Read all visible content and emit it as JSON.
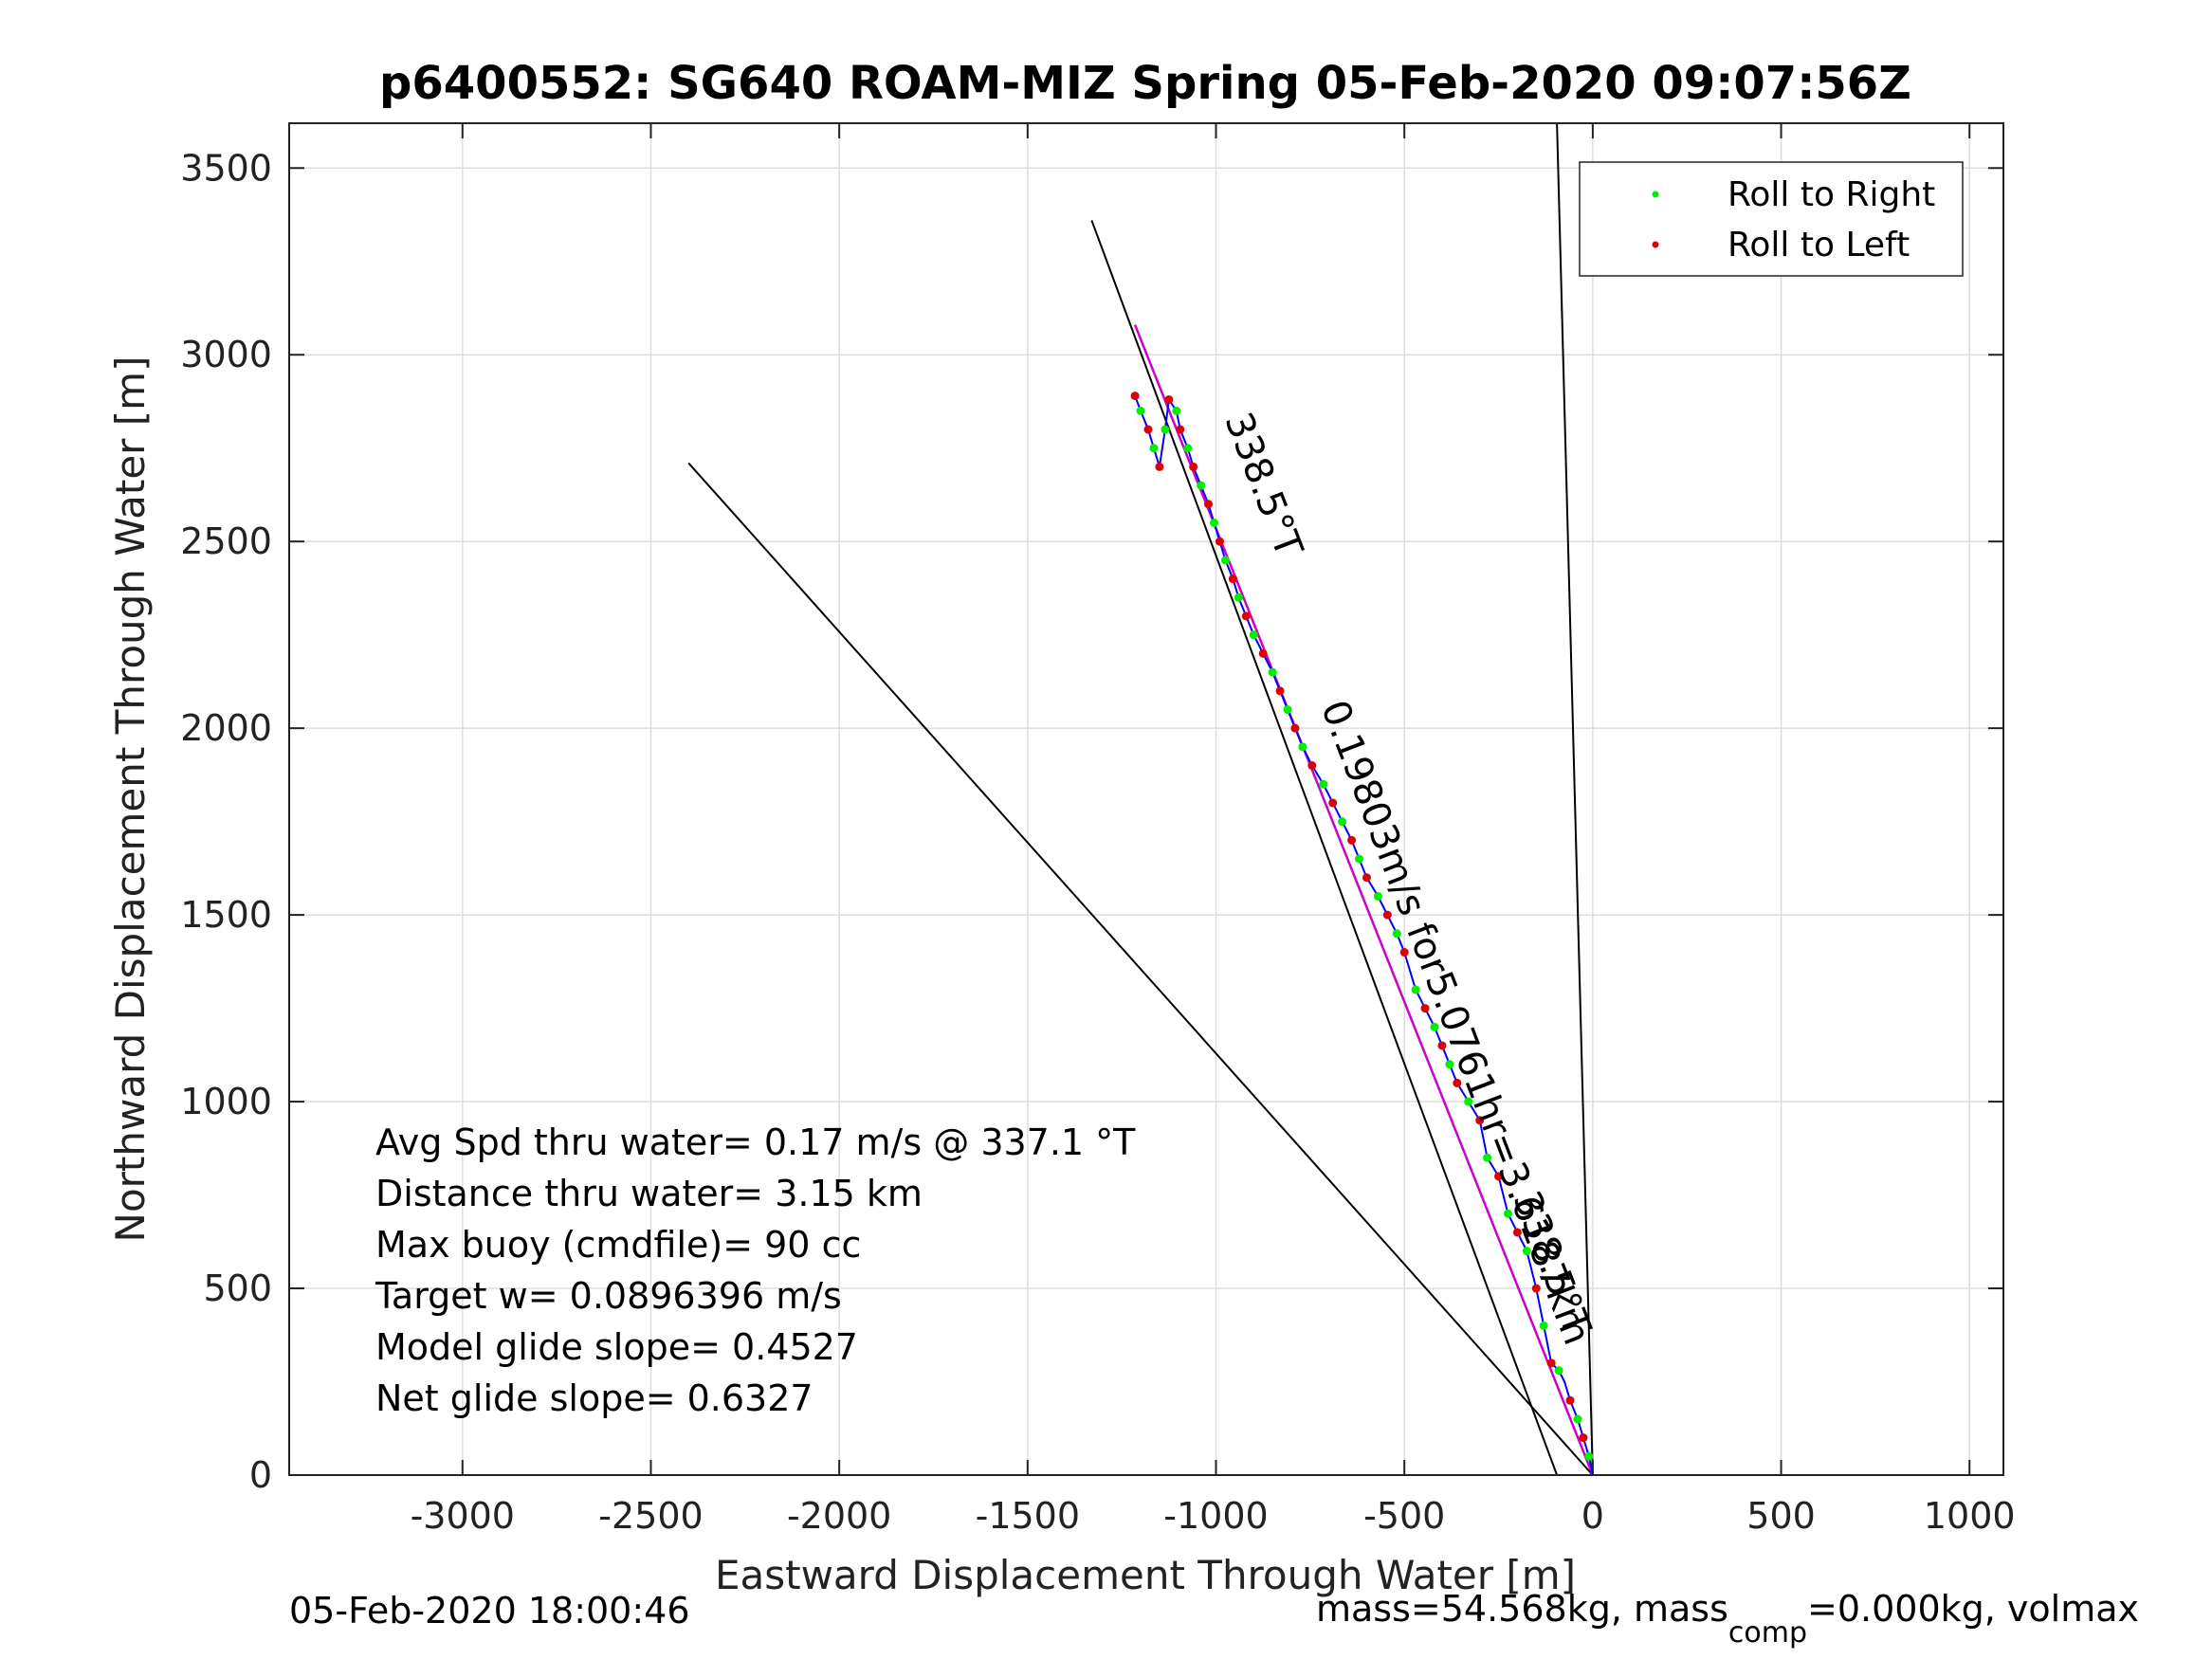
{
  "chart_data": {
    "type": "line",
    "title": "p6400552: SG640 ROAM-MIZ Spring 05-Feb-2020 09:07:56Z",
    "xlabel": "Eastward Displacement Through Water [m]",
    "ylabel": "Northward Displacement Through Water [m]",
    "xlim": [
      -3460,
      1090
    ],
    "ylim": [
      0,
      3620
    ],
    "xticks": [
      -3000,
      -2500,
      -2000,
      -1500,
      -1000,
      -500,
      0,
      500,
      1000
    ],
    "yticks": [
      0,
      500,
      1000,
      1500,
      2000,
      2500,
      3000,
      3500
    ],
    "grid": true,
    "legend": {
      "location": "top-right",
      "entries": [
        "Roll to Right",
        "Roll to Left"
      ]
    },
    "colors": {
      "roll_right": "#00ee00",
      "roll_left": "#dd0000",
      "track": "#0000ff",
      "heading": "#cc00cc",
      "reference": "#000000",
      "grid": "#dddddd"
    },
    "track": {
      "x": [
        0,
        -10,
        -25,
        -40,
        -60,
        -75,
        -90,
        -110,
        -130,
        -150,
        -175,
        -200,
        -225,
        -250,
        -280,
        -300,
        -330,
        -360,
        -380,
        -400,
        -420,
        -445,
        -470,
        -500,
        -520,
        -545,
        -570,
        -600,
        -620,
        -640,
        -665,
        -690,
        -715,
        -745,
        -770,
        -790,
        -810,
        -830,
        -850,
        -875,
        -900,
        -920,
        -940,
        -955,
        -975,
        -990,
        -1005,
        -1020,
        -1040,
        -1060,
        -1075,
        -1095,
        -1105,
        -1125,
        -1135,
        -1150,
        -1165,
        -1180,
        -1200,
        -1215
      ],
      "y": [
        0,
        50,
        100,
        150,
        200,
        250,
        280,
        300,
        400,
        500,
        600,
        650,
        700,
        800,
        850,
        950,
        1000,
        1050,
        1100,
        1150,
        1200,
        1250,
        1300,
        1400,
        1450,
        1500,
        1550,
        1600,
        1650,
        1700,
        1750,
        1800,
        1850,
        1900,
        1950,
        2000,
        2050,
        2100,
        2150,
        2200,
        2250,
        2300,
        2350,
        2400,
        2450,
        2500,
        2550,
        2600,
        2650,
        2700,
        2750,
        2800,
        2850,
        2880,
        2800,
        2700,
        2750,
        2800,
        2850,
        2890
      ]
    },
    "roll_right_points": {
      "x": [
        -10,
        -40,
        -90,
        -130,
        -175,
        -225,
        -280,
        -330,
        -380,
        -420,
        -470,
        -520,
        -570,
        -620,
        -665,
        -715,
        -770,
        -810,
        -850,
        -900,
        -940,
        -975,
        -1005,
        -1040,
        -1075,
        -1105,
        -1135,
        -1165,
        -1200
      ],
      "y": [
        50,
        150,
        280,
        400,
        600,
        700,
        850,
        1000,
        1100,
        1200,
        1300,
        1450,
        1550,
        1650,
        1750,
        1850,
        1950,
        2050,
        2150,
        2250,
        2350,
        2450,
        2550,
        2650,
        2750,
        2850,
        2800,
        2750,
        2850
      ]
    },
    "roll_left_points": {
      "x": [
        -25,
        -60,
        -110,
        -150,
        -200,
        -250,
        -300,
        -360,
        -400,
        -445,
        -500,
        -545,
        -600,
        -640,
        -690,
        -745,
        -790,
        -830,
        -875,
        -920,
        -955,
        -990,
        -1020,
        -1060,
        -1095,
        -1125,
        -1150,
        -1180,
        -1215
      ],
      "y": [
        100,
        200,
        300,
        500,
        650,
        800,
        950,
        1050,
        1150,
        1250,
        1400,
        1500,
        1600,
        1700,
        1800,
        1900,
        2000,
        2100,
        2200,
        2300,
        2400,
        2500,
        2600,
        2700,
        2800,
        2880,
        2700,
        2800,
        2890
      ]
    },
    "reference_lines": [
      {
        "name": "",
        "x": [
          0,
          -2400
        ],
        "y": [
          0,
          2710
        ]
      },
      {
        "name": "",
        "x": [
          0,
          -95
        ],
        "y": [
          0,
          3620
        ]
      },
      {
        "name": "",
        "x": [
          -95,
          -1330
        ],
        "y": [
          0,
          3360
        ]
      }
    ],
    "heading_line": {
      "x": [
        0,
        -1215
      ],
      "y": [
        0,
        3080
      ]
    },
    "annotations": [
      {
        "text": "338.5°T",
        "x": -905,
        "y": 2640,
        "angle": 69
      },
      {
        "text": "0.19803m/s for5.0761hr=3.6187km",
        "x": -395,
        "y": 1200,
        "angle": 69
      },
      {
        "text": "338.5°T",
        "x": -140,
        "y": 555,
        "angle": 69
      }
    ],
    "stats": [
      "Avg Spd thru water=  0.17 m/s @ 337.1 °T",
      "Distance thru water=  3.15 km",
      "Max buoy (cmdfile)= 90 cc",
      "Target w= 0.0896396 m/s",
      "Model glide slope= 0.4527",
      "Net glide slope= 0.6327"
    ]
  },
  "footer": {
    "timestamp": "05-Feb-2020 18:00:46",
    "mass_text": "mass=54.568kg, mass",
    "mass_sub": "comp",
    "mass_tail": "=0.000kg, volmax"
  }
}
